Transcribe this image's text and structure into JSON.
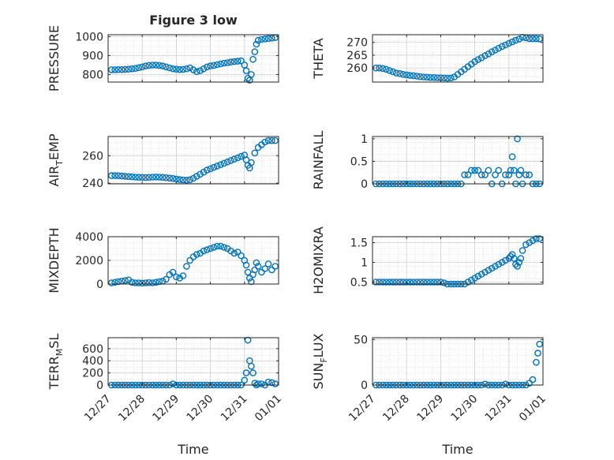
{
  "figure": {
    "title": "Figure 3 low",
    "marker_color": "#0072BD",
    "grid_color": "#d9d9d9"
  },
  "x_tick_labels": [
    "12/27",
    "12/28",
    "12/29",
    "12/30",
    "12/31",
    "01/01"
  ],
  "chart_data": [
    {
      "type": "scatter",
      "ylabel": "PRESSURE",
      "xlabel": "",
      "ylim": [
        760,
        1010
      ],
      "yticks": [
        800,
        900,
        1000
      ],
      "grid": true,
      "x": [
        0.1,
        0.2,
        0.3,
        0.4,
        0.5,
        0.6,
        0.7,
        0.8,
        0.9,
        1.0,
        1.1,
        1.2,
        1.3,
        1.4,
        1.5,
        1.6,
        1.7,
        1.8,
        1.9,
        2.0,
        2.1,
        2.2,
        2.3,
        2.4,
        2.5,
        2.6,
        2.7,
        2.8,
        2.9,
        3.0,
        3.1,
        3.2,
        3.3,
        3.4,
        3.5,
        3.6,
        3.7,
        3.8,
        3.9,
        4.0,
        4.05,
        4.1,
        4.15,
        4.2,
        4.25,
        4.3,
        4.35,
        4.4,
        4.5,
        4.6,
        4.7,
        4.8,
        4.9
      ],
      "y": [
        825,
        825,
        826,
        826,
        827,
        828,
        830,
        832,
        836,
        840,
        845,
        848,
        850,
        850,
        848,
        845,
        840,
        835,
        830,
        828,
        826,
        827,
        830,
        835,
        825,
        815,
        820,
        830,
        840,
        845,
        848,
        852,
        856,
        860,
        862,
        866,
        868,
        870,
        872,
        850,
        820,
        780,
        770,
        800,
        880,
        920,
        960,
        980,
        985,
        988,
        990,
        992,
        995
      ]
    },
    {
      "type": "scatter",
      "ylabel": "THETA",
      "xlabel": "",
      "ylim": [
        254.5,
        273
      ],
      "yticks": [
        260,
        265,
        270
      ],
      "grid": true,
      "x": [
        0.1,
        0.2,
        0.3,
        0.4,
        0.5,
        0.6,
        0.7,
        0.8,
        0.9,
        1.0,
        1.1,
        1.2,
        1.3,
        1.4,
        1.5,
        1.6,
        1.7,
        1.8,
        1.9,
        2.0,
        2.1,
        2.2,
        2.3,
        2.4,
        2.5,
        2.6,
        2.7,
        2.8,
        2.9,
        3.0,
        3.1,
        3.2,
        3.3,
        3.4,
        3.5,
        3.6,
        3.7,
        3.8,
        3.9,
        4.0,
        4.1,
        4.2,
        4.3,
        4.4,
        4.5,
        4.6,
        4.7,
        4.8,
        4.9
      ],
      "y": [
        260,
        260,
        259.8,
        259.5,
        259,
        258.5,
        258,
        257.8,
        257.5,
        257.3,
        257.1,
        257,
        256.8,
        256.6,
        256.5,
        256.4,
        256.3,
        256.3,
        256.2,
        256.2,
        256.1,
        256,
        256.1,
        256.5,
        257.5,
        258.5,
        259.5,
        260.5,
        261.5,
        262.5,
        263.3,
        264,
        264.8,
        265.5,
        266.3,
        267,
        267.7,
        268.4,
        269,
        269.6,
        270.2,
        270.8,
        271.3,
        272,
        271.8,
        271.5,
        271.5,
        271.5,
        271.4
      ]
    },
    {
      "type": "scatter",
      "ylabel": "AIR_TEMP",
      "xlabel": "",
      "ylim": [
        239.5,
        274
      ],
      "yticks": [
        240,
        260
      ],
      "grid": true,
      "x": [
        0.1,
        0.2,
        0.3,
        0.4,
        0.5,
        0.6,
        0.7,
        0.8,
        0.9,
        1.0,
        1.1,
        1.2,
        1.3,
        1.4,
        1.5,
        1.6,
        1.7,
        1.8,
        1.9,
        2.0,
        2.1,
        2.2,
        2.3,
        2.4,
        2.5,
        2.6,
        2.7,
        2.8,
        2.9,
        3.0,
        3.1,
        3.2,
        3.3,
        3.4,
        3.5,
        3.6,
        3.7,
        3.8,
        3.9,
        4.0,
        4.05,
        4.1,
        4.15,
        4.2,
        4.3,
        4.4,
        4.5,
        4.6,
        4.7,
        4.8,
        4.9
      ],
      "y": [
        245.5,
        245.5,
        245.4,
        245.2,
        245,
        244.8,
        244.6,
        244.4,
        244.3,
        244.2,
        244.1,
        244.2,
        244.4,
        244.5,
        244.4,
        244.2,
        244,
        243.7,
        243.4,
        243,
        242.6,
        242.4,
        242.2,
        242.5,
        243.5,
        245,
        246.5,
        248,
        249.5,
        250.5,
        251.5,
        252.5,
        253.5,
        254.5,
        255.5,
        256.5,
        257.5,
        258.5,
        259.5,
        260.5,
        257,
        253,
        251,
        255,
        262,
        266,
        268,
        270,
        271,
        271,
        271
      ]
    },
    {
      "type": "scatter",
      "ylabel": "RAINFALL",
      "xlabel": "",
      "ylim": [
        0,
        1.05
      ],
      "yticks": [
        0,
        0.5,
        1
      ],
      "grid": true,
      "x": [
        0.1,
        0.2,
        0.3,
        0.4,
        0.5,
        0.6,
        0.7,
        0.8,
        0.9,
        1.0,
        1.1,
        1.2,
        1.3,
        1.4,
        1.5,
        1.6,
        1.7,
        1.8,
        1.9,
        2.0,
        2.1,
        2.2,
        2.3,
        2.4,
        2.5,
        2.6,
        2.7,
        2.8,
        2.9,
        3.0,
        3.1,
        3.2,
        3.3,
        3.4,
        3.5,
        3.6,
        3.7,
        3.8,
        3.9,
        4.0,
        4.05,
        4.1,
        4.15,
        4.2,
        4.25,
        4.3,
        4.35,
        4.4,
        4.5,
        4.6,
        4.7,
        4.8,
        4.9
      ],
      "y": [
        0,
        0,
        0,
        0,
        0,
        0,
        0,
        0,
        0,
        0,
        0,
        0,
        0,
        0,
        0,
        0,
        0,
        0,
        0,
        0,
        0,
        0,
        0,
        0,
        0,
        0,
        0.2,
        0.2,
        0.3,
        0.3,
        0.3,
        0.2,
        0.2,
        0.3,
        0,
        0.2,
        0.3,
        0,
        0.2,
        0.2,
        0.3,
        0.6,
        0.3,
        0,
        1.0,
        0.2,
        0.3,
        0,
        0.2,
        0.2,
        0,
        0,
        0
      ]
    },
    {
      "type": "scatter",
      "ylabel": "MIXDEPTH",
      "xlabel": "",
      "ylim": [
        0,
        4000
      ],
      "yticks": [
        0,
        2000,
        4000
      ],
      "grid": true,
      "x": [
        0.1,
        0.2,
        0.3,
        0.4,
        0.5,
        0.6,
        0.7,
        0.8,
        0.9,
        1.0,
        1.1,
        1.2,
        1.3,
        1.4,
        1.5,
        1.6,
        1.7,
        1.8,
        1.9,
        2.0,
        2.1,
        2.2,
        2.3,
        2.4,
        2.5,
        2.6,
        2.7,
        2.8,
        2.9,
        3.0,
        3.1,
        3.2,
        3.3,
        3.4,
        3.5,
        3.6,
        3.7,
        3.8,
        3.9,
        4.0,
        4.05,
        4.1,
        4.15,
        4.2,
        4.25,
        4.3,
        4.35,
        4.4,
        4.5,
        4.6,
        4.7,
        4.8,
        4.9
      ],
      "y": [
        100,
        150,
        200,
        250,
        300,
        350,
        150,
        100,
        100,
        80,
        100,
        120,
        100,
        150,
        200,
        250,
        400,
        800,
        1000,
        600,
        500,
        700,
        1500,
        2000,
        2300,
        2500,
        2600,
        2800,
        2900,
        3000,
        3100,
        3200,
        3200,
        3100,
        3000,
        2800,
        2600,
        2700,
        2400,
        2000,
        1600,
        1000,
        500,
        200,
        800,
        1200,
        1800,
        1500,
        1000,
        1300,
        1700,
        1200,
        1500
      ]
    },
    {
      "type": "scatter",
      "ylabel": "H2OMIXRA",
      "xlabel": "",
      "ylim": [
        0.45,
        1.65
      ],
      "yticks": [
        0.5,
        1,
        1.5
      ],
      "grid": true,
      "x": [
        0.1,
        0.2,
        0.3,
        0.4,
        0.5,
        0.6,
        0.7,
        0.8,
        0.9,
        1.0,
        1.1,
        1.2,
        1.3,
        1.4,
        1.5,
        1.6,
        1.7,
        1.8,
        1.9,
        2.0,
        2.1,
        2.2,
        2.3,
        2.4,
        2.5,
        2.6,
        2.7,
        2.8,
        2.9,
        3.0,
        3.1,
        3.2,
        3.3,
        3.4,
        3.5,
        3.6,
        3.7,
        3.8,
        3.9,
        4.0,
        4.05,
        4.1,
        4.15,
        4.2,
        4.25,
        4.3,
        4.35,
        4.4,
        4.5,
        4.6,
        4.7,
        4.8,
        4.9
      ],
      "y": [
        0.5,
        0.5,
        0.5,
        0.5,
        0.5,
        0.5,
        0.5,
        0.5,
        0.5,
        0.5,
        0.5,
        0.5,
        0.5,
        0.5,
        0.5,
        0.5,
        0.5,
        0.5,
        0.5,
        0.5,
        0.48,
        0.45,
        0.45,
        0.45,
        0.45,
        0.45,
        0.45,
        0.5,
        0.55,
        0.6,
        0.65,
        0.7,
        0.75,
        0.8,
        0.85,
        0.9,
        0.95,
        1.0,
        1.05,
        1.1,
        1.15,
        1.2,
        1.1,
        0.95,
        0.9,
        1.0,
        1.1,
        1.3,
        1.45,
        1.5,
        1.55,
        1.6,
        1.6
      ]
    },
    {
      "type": "scatter",
      "ylabel": "TERR_MSL",
      "xlabel": "Time",
      "ylim": [
        0,
        780
      ],
      "yticks": [
        0,
        200,
        400,
        600
      ],
      "grid": true,
      "x": [
        0.1,
        0.2,
        0.3,
        0.4,
        0.5,
        0.6,
        0.7,
        0.8,
        0.9,
        1.0,
        1.1,
        1.2,
        1.3,
        1.4,
        1.5,
        1.6,
        1.7,
        1.8,
        1.9,
        2.0,
        2.1,
        2.2,
        2.3,
        2.4,
        2.5,
        2.6,
        2.7,
        2.8,
        2.9,
        3.0,
        3.1,
        3.2,
        3.3,
        3.4,
        3.5,
        3.6,
        3.7,
        3.8,
        3.9,
        4.0,
        4.05,
        4.1,
        4.15,
        4.2,
        4.25,
        4.3,
        4.35,
        4.4,
        4.5,
        4.6,
        4.7,
        4.8,
        4.9
      ],
      "y": [
        0,
        0,
        0,
        0,
        0,
        0,
        0,
        0,
        0,
        0,
        0,
        0,
        0,
        0,
        0,
        0,
        0,
        0,
        20,
        0,
        0,
        0,
        0,
        0,
        0,
        0,
        0,
        0,
        0,
        0,
        0,
        0,
        0,
        0,
        0,
        0,
        0,
        0,
        0,
        80,
        200,
        740,
        400,
        310,
        200,
        30,
        0,
        20,
        20,
        0,
        50,
        40,
        20
      ]
    },
    {
      "type": "scatter",
      "ylabel": "SUN_FLUX",
      "xlabel": "Time",
      "ylim": [
        0,
        52
      ],
      "yticks": [
        0,
        50
      ],
      "grid": true,
      "x": [
        0.1,
        0.2,
        0.3,
        0.4,
        0.5,
        0.6,
        0.7,
        0.8,
        0.9,
        1.0,
        1.1,
        1.2,
        1.3,
        1.4,
        1.5,
        1.6,
        1.7,
        1.8,
        1.9,
        2.0,
        2.1,
        2.2,
        2.3,
        2.4,
        2.5,
        2.6,
        2.7,
        2.8,
        2.9,
        3.0,
        3.1,
        3.2,
        3.3,
        3.4,
        3.5,
        3.6,
        3.7,
        3.8,
        3.9,
        4.0,
        4.1,
        4.2,
        4.3,
        4.4,
        4.5,
        4.6,
        4.7,
        4.8,
        4.85,
        4.9
      ],
      "y": [
        0,
        0,
        0,
        0,
        0,
        0,
        0,
        0,
        0,
        0,
        0,
        0,
        0,
        0,
        0,
        0,
        0,
        0,
        0,
        0,
        0,
        0,
        0,
        0,
        0,
        0,
        0,
        0,
        0,
        0,
        0,
        0,
        1,
        0,
        0,
        0,
        0,
        0,
        1,
        0,
        0,
        0,
        0,
        0,
        0,
        2,
        6,
        25,
        35,
        45
      ]
    }
  ]
}
